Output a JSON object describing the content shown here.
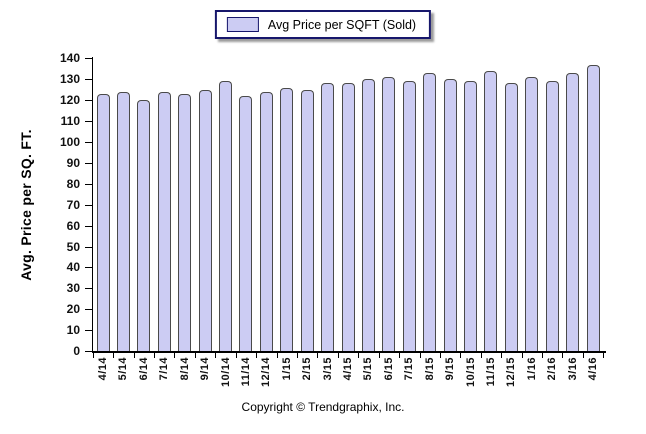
{
  "legend": {
    "label": "Avg Price per SQFT (Sold)"
  },
  "footer": {
    "copyright": "Copyright © Trendgraphix, Inc."
  },
  "colors": {
    "bar_fill": "#ccccf3",
    "bar_border": "#4a4a4a",
    "legend_border": "#16166b",
    "axis": "#000000"
  },
  "chart_data": {
    "type": "bar",
    "title": "",
    "series_name": "Avg Price per SQFT (Sold)",
    "categories": [
      "4/14",
      "5/14",
      "6/14",
      "7/14",
      "8/14",
      "9/14",
      "10/14",
      "11/14",
      "12/14",
      "1/15",
      "2/15",
      "3/15",
      "4/15",
      "5/15",
      "6/15",
      "7/15",
      "8/15",
      "9/15",
      "10/15",
      "11/15",
      "12/15",
      "1/16",
      "2/16",
      "3/16",
      "4/16"
    ],
    "values": [
      123,
      124,
      120,
      124,
      123,
      125,
      129,
      122,
      124,
      126,
      125,
      128,
      128,
      130,
      131,
      129,
      133,
      130,
      129,
      134,
      128,
      131,
      129,
      133,
      137
    ],
    "xlabel": "",
    "ylabel": "Avg. Price per SQ. FT.",
    "ylim": [
      0,
      140
    ],
    "ytick_step": 10,
    "grid": false,
    "legend_position": "top-center"
  }
}
